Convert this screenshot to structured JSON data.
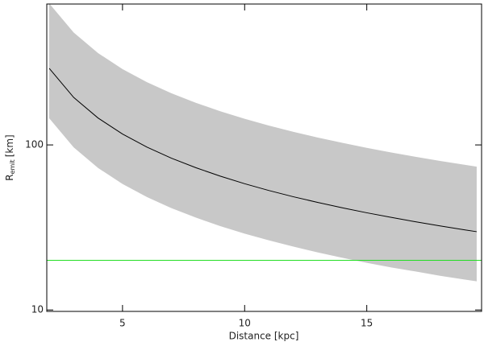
{
  "chart_data": {
    "type": "line",
    "xlabel": "Distance [kpc]",
    "ylabel": "R",
    "ylabel_sub": "emit",
    "ylabel_unit": "[km]",
    "x": [
      2,
      3,
      4,
      5,
      6,
      7,
      8,
      9,
      10,
      11,
      12,
      13,
      14,
      15,
      16,
      17,
      18,
      19,
      19.5
    ],
    "series": [
      {
        "color": "#000000",
        "values": [
          291,
          194,
          145.5,
          116.4,
          97,
          83.1,
          72.8,
          64.7,
          58.2,
          52.9,
          48.5,
          44.8,
          41.6,
          38.8,
          36.4,
          34.2,
          32.3,
          30.6,
          29.8
        ]
      }
    ],
    "band": {
      "color": "#c8c8c8",
      "upper": [
        720,
        480,
        360,
        288,
        240,
        205.7,
        180,
        160,
        144,
        130.9,
        120,
        110.8,
        102.9,
        96,
        90,
        84.7,
        80,
        75.8,
        73.8
      ],
      "lower": [
        145,
        96.7,
        72.5,
        58,
        48.3,
        41.4,
        36.3,
        32.2,
        29,
        26.4,
        24.2,
        22.3,
        20.7,
        19.3,
        18.1,
        17.1,
        16.1,
        15.3,
        14.9
      ]
    },
    "hline": {
      "value": 20,
      "color": "#22dd22"
    },
    "xlim": [
      1.9,
      19.7
    ],
    "ylim": [
      9.8,
      714
    ],
    "xticks": [
      5,
      10,
      15
    ],
    "yticks": [
      10,
      100
    ],
    "ylog": true
  }
}
